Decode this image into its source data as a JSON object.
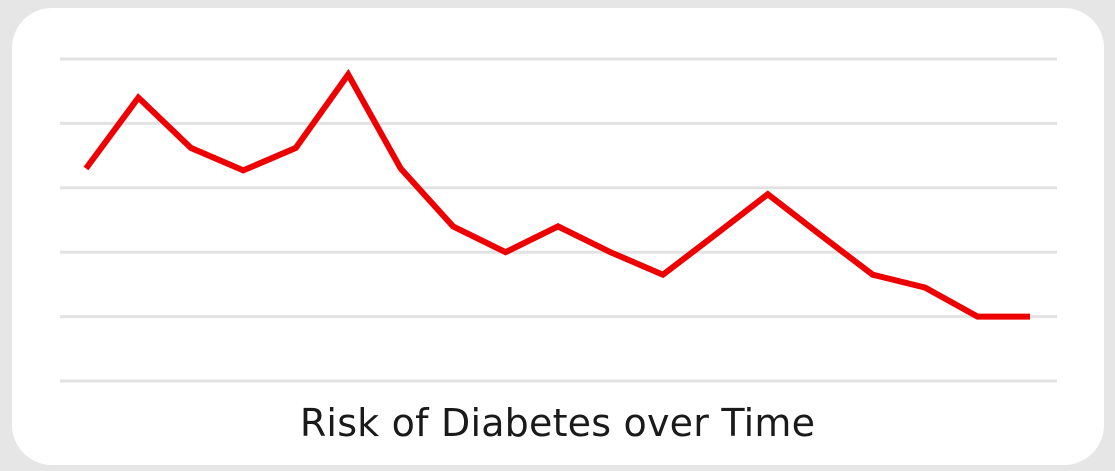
{
  "chart_data": {
    "type": "line",
    "title": "Risk of Diabetes over Time",
    "xlabel": "",
    "ylabel": "",
    "grid": true,
    "legend": "none",
    "series": [
      {
        "color": "#ee0000",
        "x": [
          0,
          1,
          2,
          3,
          4,
          5,
          6,
          7,
          8,
          9,
          10,
          11,
          12,
          13,
          14,
          15,
          16,
          17,
          18
        ],
        "values": [
          3.3,
          4.4,
          3.62,
          3.27,
          3.62,
          4.76,
          3.3,
          2.4,
          2.0,
          2.4,
          2.0,
          1.65,
          2.27,
          2.9,
          2.27,
          1.65,
          1.45,
          1.0,
          1.0
        ]
      }
    ],
    "ylim": [
      0,
      5
    ],
    "yticks": [
      0,
      1,
      2,
      3,
      4,
      5
    ]
  }
}
